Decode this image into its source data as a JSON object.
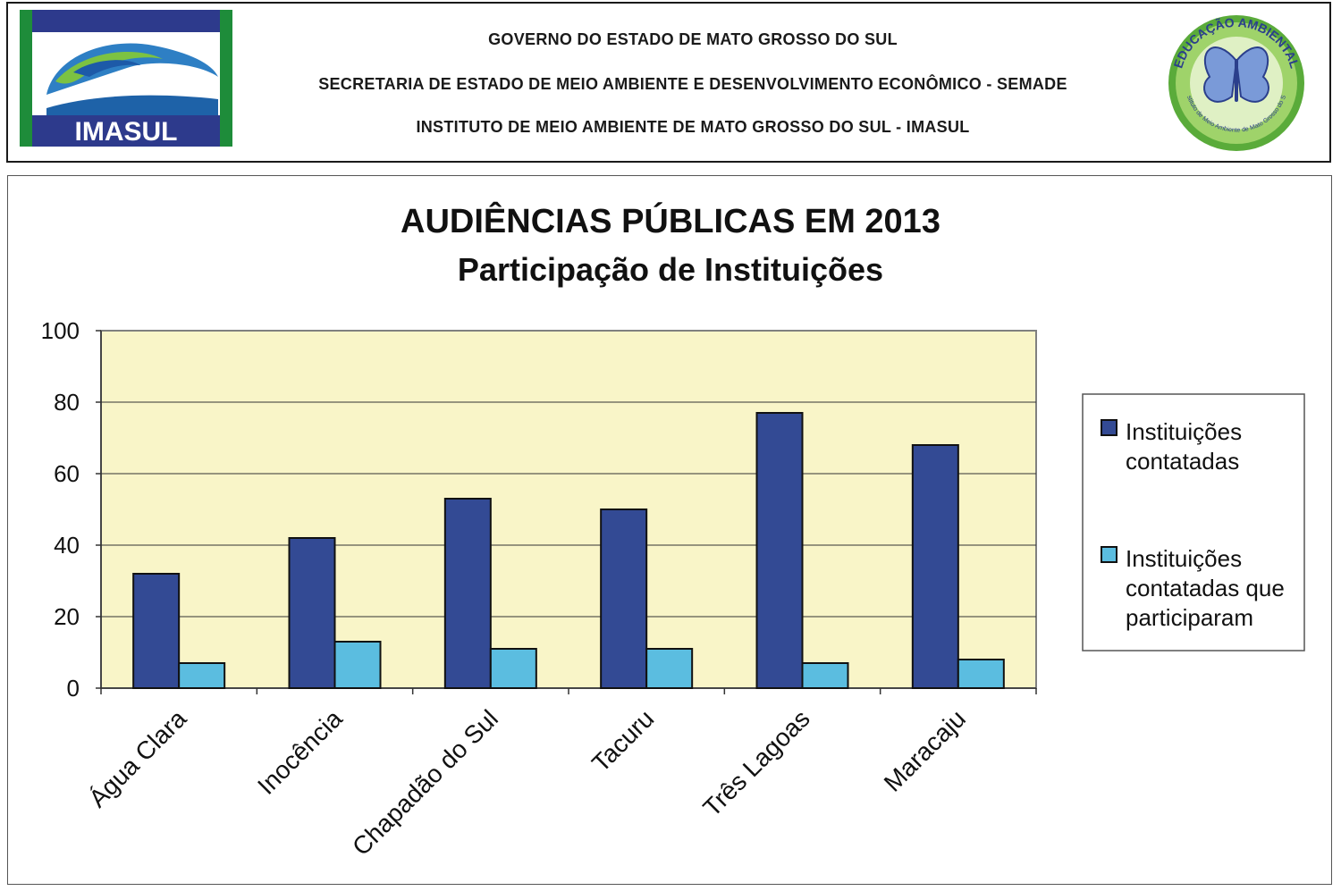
{
  "header": {
    "logo_left_text": "IMASUL",
    "line1": "GOVERNO DO ESTADO DE MATO GROSSO DO SUL",
    "line2": "SECRETARIA DE ESTADO DE MEIO AMBIENTE E DESENVOLVIMENTO ECONÔMICO - SEMADE",
    "line3": "INSTITUTO DE MEIO AMBIENTE DE MATO GROSSO DO SUL - IMASUL",
    "logo_right_top_text": "EDUCAÇÃO AMBIENTAL",
    "logo_right_bottom_text": "Instituto de Meio Ambiente de Mato Grosso do Sul"
  },
  "chart_data": {
    "type": "bar",
    "title": "AUDIÊNCIAS PÚBLICAS EM 2013",
    "subtitle": "Participação de Instituições",
    "categories": [
      "Água Clara",
      "Inocência",
      "Chapadão do Sul",
      "Tacuru",
      "Três Lagoas",
      "Maracaju"
    ],
    "series": [
      {
        "name": "Instituições contatadas",
        "values": [
          32,
          42,
          53,
          50,
          77,
          68
        ],
        "color": "#334a94"
      },
      {
        "name": "Instituições contatadas que participaram",
        "values": [
          7,
          13,
          11,
          11,
          7,
          8
        ],
        "color": "#5bbde0"
      }
    ],
    "ylim": [
      0,
      100
    ],
    "yticks": [
      0,
      20,
      40,
      60,
      80,
      100
    ],
    "grid": true,
    "plot_background": "#f9f5c8",
    "legend_position": "right"
  }
}
